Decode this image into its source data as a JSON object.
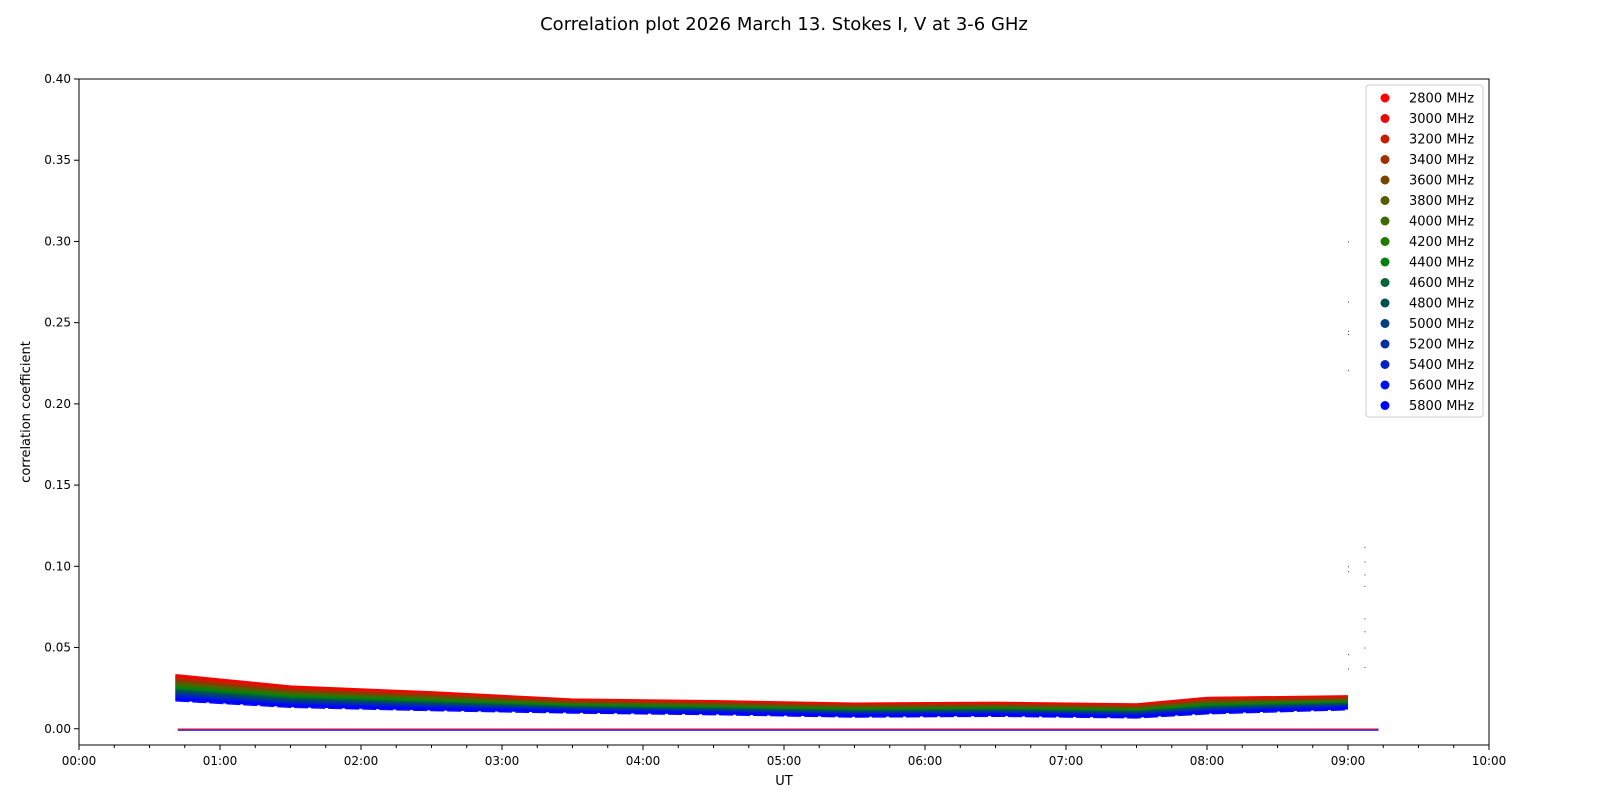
{
  "chart_data": {
    "type": "line",
    "title": "Correlation plot 2026 March 13. Stokes I, V at 3-6 GHz",
    "xlabel": "UT",
    "ylabel": "correlation coefficient",
    "xlim": [
      "00:00",
      "10:00"
    ],
    "ylim": [
      -0.01,
      0.4
    ],
    "xticks": [
      "00:00",
      "01:00",
      "02:00",
      "03:00",
      "04:00",
      "05:00",
      "06:00",
      "07:00",
      "08:00",
      "09:00",
      "10:00"
    ],
    "yticks": [
      "0.00",
      "0.05",
      "0.10",
      "0.15",
      "0.20",
      "0.25",
      "0.30",
      "0.35",
      "0.40"
    ],
    "grid": false,
    "legend_position": "top-right",
    "x": [
      "00:41",
      "01:30",
      "02:30",
      "03:30",
      "04:30",
      "05:30",
      "06:30",
      "07:30",
      "08:00",
      "09:00"
    ],
    "series": [
      {
        "name": "2800 MHz",
        "color": "#ff0000",
        "values": [
          0.033,
          0.026,
          0.0225,
          0.018,
          0.017,
          0.0155,
          0.016,
          0.015,
          0.019,
          0.02
        ]
      },
      {
        "name": "3000 MHz",
        "color": "#e80a00",
        "values": [
          0.032,
          0.0252,
          0.0218,
          0.0175,
          0.0165,
          0.015,
          0.0155,
          0.0145,
          0.0184,
          0.0195
        ]
      },
      {
        "name": "3200 MHz",
        "color": "#c42000",
        "values": [
          0.031,
          0.0244,
          0.0211,
          0.017,
          0.016,
          0.0145,
          0.015,
          0.014,
          0.0178,
          0.019
        ]
      },
      {
        "name": "3400 MHz",
        "color": "#a03000",
        "values": [
          0.03,
          0.0236,
          0.0204,
          0.0165,
          0.0155,
          0.014,
          0.0145,
          0.0135,
          0.0172,
          0.0185
        ]
      },
      {
        "name": "3600 MHz",
        "color": "#7a4400",
        "values": [
          0.029,
          0.0228,
          0.0197,
          0.016,
          0.015,
          0.0135,
          0.014,
          0.013,
          0.0166,
          0.018
        ]
      },
      {
        "name": "3800 MHz",
        "color": "#5c5a00",
        "values": [
          0.028,
          0.022,
          0.019,
          0.0155,
          0.0145,
          0.013,
          0.0135,
          0.0125,
          0.016,
          0.0175
        ]
      },
      {
        "name": "4000 MHz",
        "color": "#3c6a00",
        "values": [
          0.027,
          0.0212,
          0.0183,
          0.015,
          0.014,
          0.0125,
          0.013,
          0.012,
          0.0154,
          0.017
        ]
      },
      {
        "name": "4200 MHz",
        "color": "#1e7a00",
        "values": [
          0.026,
          0.0204,
          0.0176,
          0.0145,
          0.0135,
          0.012,
          0.0125,
          0.0115,
          0.0148,
          0.0165
        ]
      },
      {
        "name": "4400 MHz",
        "color": "#008010",
        "values": [
          0.025,
          0.0196,
          0.0169,
          0.014,
          0.013,
          0.0115,
          0.012,
          0.011,
          0.0142,
          0.016
        ]
      },
      {
        "name": "4600 MHz",
        "color": "#006638",
        "values": [
          0.024,
          0.0188,
          0.0162,
          0.0135,
          0.0125,
          0.011,
          0.0115,
          0.0105,
          0.0136,
          0.0155
        ]
      },
      {
        "name": "4800 MHz",
        "color": "#005050",
        "values": [
          0.023,
          0.018,
          0.0155,
          0.013,
          0.012,
          0.0105,
          0.011,
          0.01,
          0.013,
          0.015
        ]
      },
      {
        "name": "5000 MHz",
        "color": "#004080",
        "values": [
          0.022,
          0.0172,
          0.0148,
          0.0125,
          0.0115,
          0.01,
          0.0105,
          0.0095,
          0.0124,
          0.0145
        ]
      },
      {
        "name": "5200 MHz",
        "color": "#0030a0",
        "values": [
          0.021,
          0.0164,
          0.0141,
          0.012,
          0.011,
          0.0095,
          0.01,
          0.009,
          0.0118,
          0.014
        ]
      },
      {
        "name": "5400 MHz",
        "color": "#0020c8",
        "values": [
          0.02,
          0.0156,
          0.0134,
          0.0115,
          0.0105,
          0.009,
          0.0095,
          0.0085,
          0.0112,
          0.0135
        ]
      },
      {
        "name": "5600 MHz",
        "color": "#0010e8",
        "values": [
          0.019,
          0.0148,
          0.0127,
          0.011,
          0.01,
          0.0085,
          0.009,
          0.008,
          0.0106,
          0.013
        ]
      },
      {
        "name": "5800 MHz",
        "color": "#0000ff",
        "values": [
          0.018,
          0.014,
          0.012,
          0.0105,
          0.0095,
          0.008,
          0.0085,
          0.0075,
          0.01,
          0.0125
        ]
      }
    ],
    "baseline": {
      "x": [
        "00:42",
        "09:13"
      ],
      "value": -0.0005
    },
    "outliers": {
      "x": [
        "09:00",
        "09:00",
        "09:00",
        "09:00",
        "09:00",
        "09:00",
        "09:00",
        "09:00",
        "09:00",
        "09:07",
        "09:07",
        "09:07",
        "09:07",
        "09:07",
        "09:07",
        "09:07",
        "09:07"
      ],
      "y": [
        0.3,
        0.263,
        0.245,
        0.243,
        0.221,
        0.1,
        0.097,
        0.046,
        0.037,
        0.112,
        0.103,
        0.095,
        0.088,
        0.068,
        0.06,
        0.05,
        0.038
      ]
    }
  }
}
